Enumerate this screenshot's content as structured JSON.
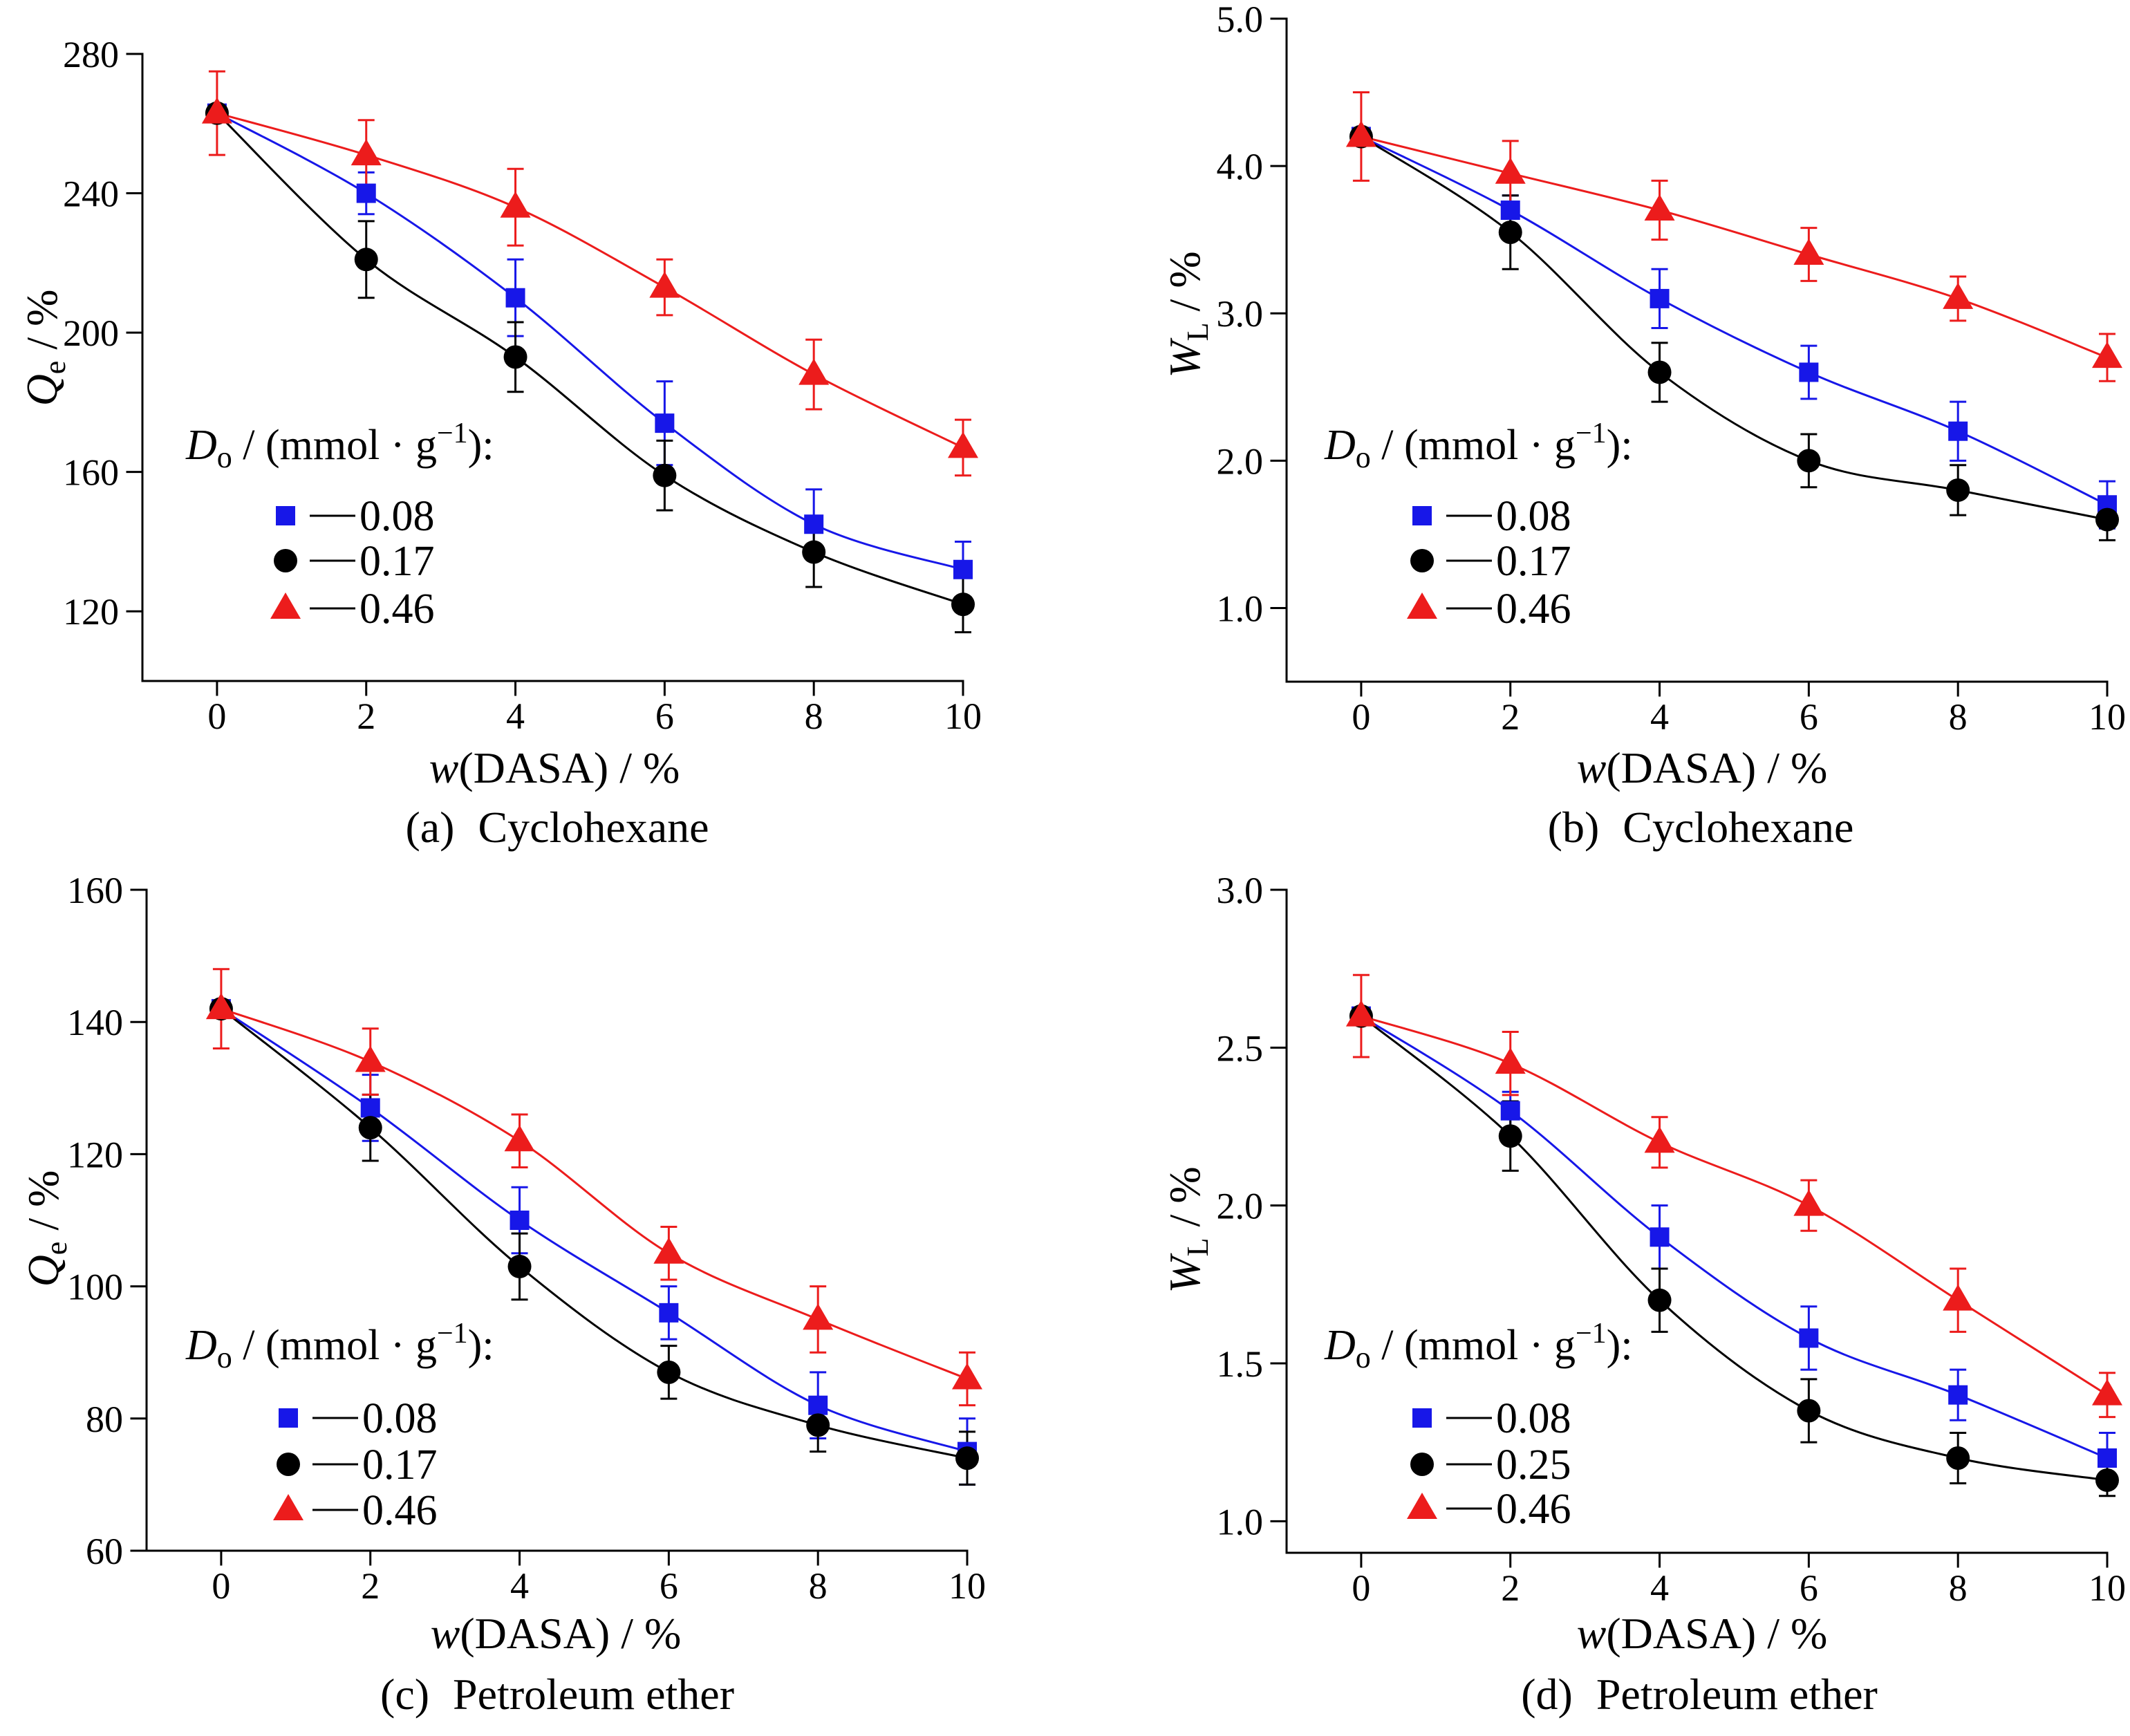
{
  "chart_data": [
    {
      "panel": "a",
      "type": "line",
      "caption": {
        "label": "(a)",
        "title": "Cyclohexane"
      },
      "xlabel": {
        "symbol": "w",
        "text": "(DASA) / %"
      },
      "ylabel": {
        "symbol": "Q",
        "subscript": "e",
        "text": " / %"
      },
      "xlim": [
        -1,
        10
      ],
      "ylim": [
        100,
        280
      ],
      "xticks": [
        "0",
        "2",
        "4",
        "6",
        "8",
        "10"
      ],
      "yticks": [
        "120",
        "160",
        "200",
        "240",
        "280"
      ],
      "grid": false,
      "legend_position": "lower-left",
      "legend_title": {
        "symbol": "D",
        "subscript": "o",
        "text": " / (mmol · g",
        "superscript": "−1",
        "end": "):"
      },
      "x": [
        0,
        2,
        4,
        6,
        8,
        10
      ],
      "series": [
        {
          "name": "0.08",
          "marker": "square",
          "color": "#1717e8",
          "values": [
            263,
            240,
            210,
            174,
            145,
            132
          ],
          "errors": [
            null,
            6,
            11,
            12,
            10,
            8
          ]
        },
        {
          "name": "0.17",
          "marker": "circle",
          "color": "#000000",
          "values": [
            263,
            221,
            193,
            159,
            137,
            122
          ],
          "errors": [
            null,
            11,
            10,
            10,
            10,
            8
          ]
        },
        {
          "name": "0.46",
          "marker": "triangle",
          "color": "#ec1c1c",
          "values": [
            263,
            251,
            236,
            213,
            188,
            167
          ],
          "errors": [
            12,
            10,
            11,
            8,
            10,
            8
          ]
        }
      ]
    },
    {
      "panel": "b",
      "type": "line",
      "caption": {
        "label": "(b)",
        "title": "Cyclohexane"
      },
      "xlabel": {
        "symbol": "w",
        "text": "(DASA) / %"
      },
      "ylabel": {
        "symbol": "W",
        "subscript": "L",
        "text": " / %"
      },
      "xlim": [
        -1,
        10
      ],
      "ylim": [
        0.5,
        5.0
      ],
      "xticks": [
        "0",
        "2",
        "4",
        "6",
        "8",
        "10"
      ],
      "yticks": [
        "1.0",
        "2.0",
        "3.0",
        "4.0",
        "5.0"
      ],
      "grid": false,
      "legend_position": "lower-left",
      "legend_title": {
        "symbol": "D",
        "subscript": "o",
        "text": " / (mmol · g",
        "superscript": "−1",
        "end": "):"
      },
      "x": [
        0,
        2,
        4,
        6,
        8,
        10
      ],
      "series": [
        {
          "name": "0.08",
          "marker": "square",
          "color": "#1717e8",
          "values": [
            4.2,
            3.7,
            3.1,
            2.6,
            2.2,
            1.7
          ],
          "errors": [
            null,
            0.1,
            0.2,
            0.18,
            0.2,
            0.16
          ]
        },
        {
          "name": "0.17",
          "marker": "circle",
          "color": "#000000",
          "values": [
            4.2,
            3.55,
            2.6,
            2.0,
            1.8,
            1.6
          ],
          "errors": [
            null,
            0.25,
            0.2,
            0.18,
            0.17,
            0.14
          ]
        },
        {
          "name": "0.46",
          "marker": "triangle",
          "color": "#ec1c1c",
          "values": [
            4.2,
            3.95,
            3.7,
            3.4,
            3.1,
            2.7
          ],
          "errors": [
            0.3,
            0.22,
            0.2,
            0.18,
            0.15,
            0.16
          ]
        }
      ]
    },
    {
      "panel": "c",
      "type": "line",
      "caption": {
        "label": "(c)",
        "title": "Petroleum ether"
      },
      "xlabel": {
        "symbol": "w",
        "text": "(DASA) / %"
      },
      "ylabel": {
        "symbol": "Q",
        "subscript": "e",
        "text": " / %"
      },
      "xlim": [
        -1,
        10
      ],
      "ylim": [
        60,
        160
      ],
      "xticks": [
        "0",
        "2",
        "4",
        "6",
        "8",
        "10"
      ],
      "yticks": [
        "60",
        "80",
        "100",
        "120",
        "140",
        "160"
      ],
      "grid": false,
      "legend_position": "lower-left",
      "legend_title": {
        "symbol": "D",
        "subscript": "o",
        "text": " / (mmol · g",
        "superscript": "−1",
        "end": "):"
      },
      "x": [
        0,
        2,
        4,
        6,
        8,
        10
      ],
      "series": [
        {
          "name": "0.08",
          "marker": "square",
          "color": "#1717e8",
          "values": [
            142,
            127,
            110,
            96,
            82,
            75
          ],
          "errors": [
            null,
            5,
            5,
            4,
            5,
            5
          ]
        },
        {
          "name": "0.17",
          "marker": "circle",
          "color": "#000000",
          "values": [
            142,
            124,
            103,
            87,
            79,
            74
          ],
          "errors": [
            null,
            5,
            5,
            4,
            4,
            4
          ]
        },
        {
          "name": "0.46",
          "marker": "triangle",
          "color": "#ec1c1c",
          "values": [
            142,
            134,
            122,
            105,
            95,
            86
          ],
          "errors": [
            6,
            5,
            4,
            4,
            5,
            4
          ]
        }
      ]
    },
    {
      "panel": "d",
      "type": "line",
      "caption": {
        "label": "(d)",
        "title": "Petroleum ether"
      },
      "xlabel": {
        "symbol": "w",
        "text": "(DASA) / %"
      },
      "ylabel": {
        "symbol": "W",
        "subscript": "L",
        "text": " / %"
      },
      "xlim": [
        -1,
        10
      ],
      "ylim": [
        0.9,
        3.0
      ],
      "xticks": [
        "0",
        "2",
        "4",
        "6",
        "8",
        "10"
      ],
      "yticks": [
        "1.0",
        "1.5",
        "2.0",
        "2.5",
        "3.0"
      ],
      "grid": false,
      "legend_position": "lower-left",
      "legend_title": {
        "symbol": "D",
        "subscript": "o",
        "text": " / (mmol · g",
        "superscript": "−1",
        "end": "):"
      },
      "x": [
        0,
        2,
        4,
        6,
        8,
        10
      ],
      "series": [
        {
          "name": "0.08",
          "marker": "square",
          "color": "#1717e8",
          "values": [
            2.6,
            2.3,
            1.9,
            1.58,
            1.4,
            1.2
          ],
          "errors": [
            null,
            0.06,
            0.1,
            0.1,
            0.08,
            0.08
          ]
        },
        {
          "name": "0.25",
          "marker": "circle",
          "color": "#000000",
          "values": [
            2.6,
            2.22,
            1.7,
            1.35,
            1.2,
            1.13
          ],
          "errors": [
            null,
            0.11,
            0.1,
            0.1,
            0.08,
            0.05
          ]
        },
        {
          "name": "0.46",
          "marker": "triangle",
          "color": "#ec1c1c",
          "values": [
            2.6,
            2.45,
            2.2,
            2.0,
            1.7,
            1.4
          ],
          "errors": [
            0.13,
            0.1,
            0.08,
            0.08,
            0.1,
            0.07
          ]
        }
      ]
    }
  ]
}
